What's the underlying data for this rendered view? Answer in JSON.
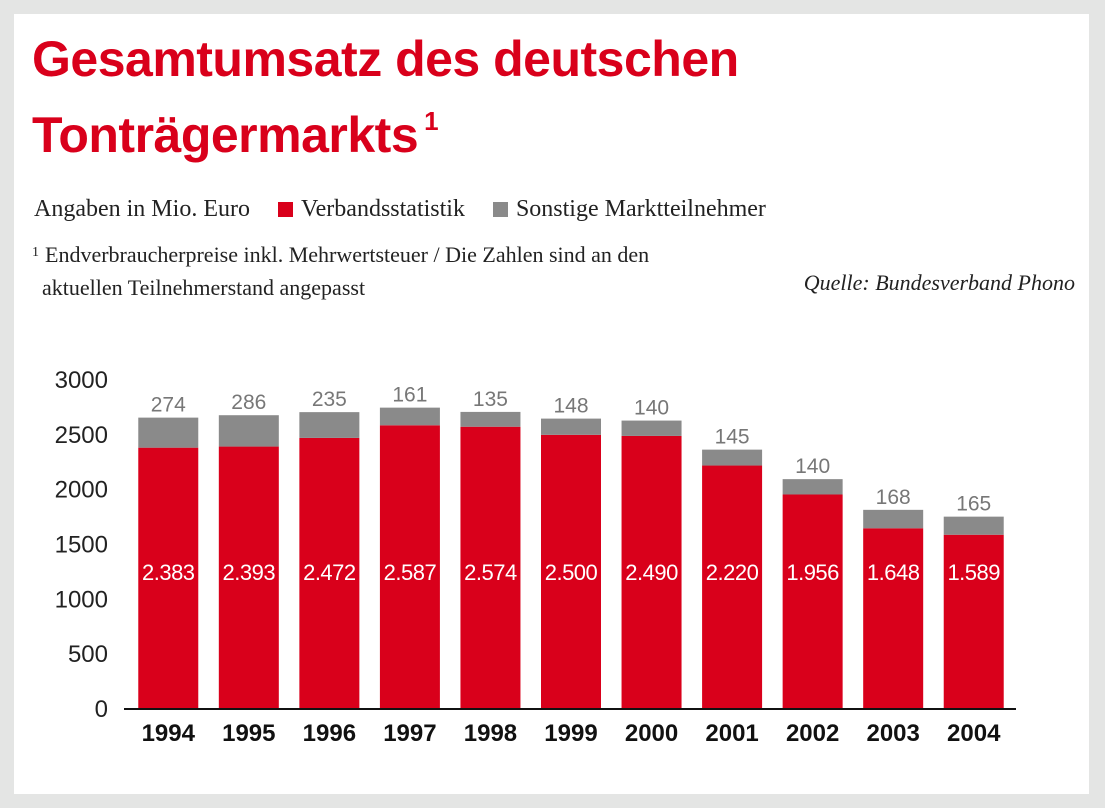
{
  "title_line1": "Gesamtumsatz des deutschen",
  "title_line2": "Tonträgermarkts",
  "title_footnote_mark": "1",
  "units_note": "Angaben in Mio. Euro",
  "legend": [
    {
      "label": "Verbandsstatistik",
      "color": "#d9001b"
    },
    {
      "label": "Sonstige Marktteilnehmer",
      "color": "#8a8a8a"
    }
  ],
  "footnote": {
    "mark": "1",
    "line1": "Endverbraucherpreise inkl. Mehrwertsteuer / Die Zahlen sind an den",
    "line2": "aktuellen Teilnehmerstand angepasst"
  },
  "source": "Quelle: Bundesverband Phono",
  "chart_data": {
    "type": "bar",
    "stacked": true,
    "categories": [
      "1994",
      "1995",
      "1996",
      "1997",
      "1998",
      "1999",
      "2000",
      "2001",
      "2002",
      "2003",
      "2004"
    ],
    "series": [
      {
        "name": "Verbandsstatistik",
        "color": "#d9001b",
        "values": [
          2383,
          2393,
          2472,
          2587,
          2574,
          2500,
          2490,
          2220,
          1956,
          1648,
          1589
        ],
        "labels": [
          "2.383",
          "2.393",
          "2.472",
          "2.587",
          "2.574",
          "2.500",
          "2.490",
          "2.220",
          "1.956",
          "1.648",
          "1.589"
        ]
      },
      {
        "name": "Sonstige Marktteilnehmer",
        "color": "#8a8a8a",
        "values": [
          274,
          286,
          235,
          161,
          135,
          148,
          140,
          145,
          140,
          168,
          165
        ],
        "labels": [
          "274",
          "286",
          "235",
          "161",
          "135",
          "148",
          "140",
          "145",
          "140",
          "168",
          "165"
        ]
      }
    ],
    "ylim": [
      0,
      3000
    ],
    "yticks": [
      "0",
      "500",
      "1000",
      "1500",
      "2000",
      "2500",
      "3000"
    ],
    "ytick_values": [
      0,
      500,
      1000,
      1500,
      2000,
      2500,
      3000
    ]
  }
}
